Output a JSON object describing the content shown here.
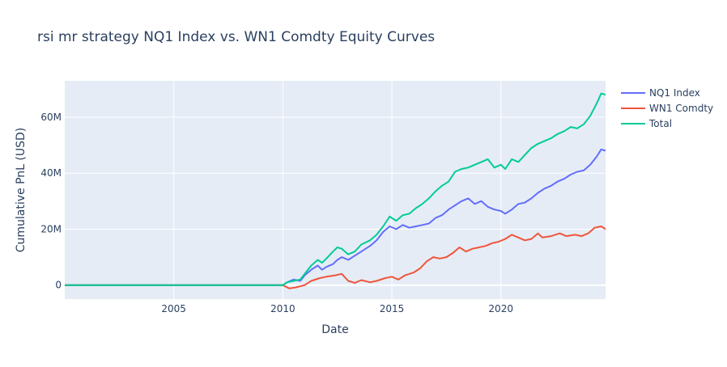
{
  "chart_data": {
    "type": "line",
    "title": "rsi mr strategy NQ1 Index vs. WN1 Comdty Equity Curves",
    "xlabel": "Date",
    "ylabel": "Cumulative PnL (USD)",
    "xlim": [
      2000.0,
      2024.8
    ],
    "ylim": [
      -5000000,
      73000000
    ],
    "x_ticks": [
      {
        "value": 2005,
        "label": "2005"
      },
      {
        "value": 2010,
        "label": "2010"
      },
      {
        "value": 2015,
        "label": "2015"
      },
      {
        "value": 2020,
        "label": "2020"
      }
    ],
    "y_ticks": [
      {
        "value": 0,
        "label": "0"
      },
      {
        "value": 20000000,
        "label": "20M"
      },
      {
        "value": 40000000,
        "label": "40M"
      },
      {
        "value": 60000000,
        "label": "60M"
      }
    ],
    "grid": true,
    "legend_position": "top-right",
    "plot_background": "#E5ECF6",
    "series": [
      {
        "name": "NQ1 Index",
        "color": "#636EFA",
        "points": [
          [
            2000.0,
            0
          ],
          [
            2010.0,
            0
          ],
          [
            2010.2,
            1000000
          ],
          [
            2010.5,
            2000000
          ],
          [
            2010.8,
            1500000
          ],
          [
            2011.0,
            3500000
          ],
          [
            2011.3,
            5500000
          ],
          [
            2011.6,
            7000000
          ],
          [
            2011.8,
            5500000
          ],
          [
            2012.0,
            6500000
          ],
          [
            2012.3,
            7500000
          ],
          [
            2012.5,
            9000000
          ],
          [
            2012.7,
            10000000
          ],
          [
            2013.0,
            9000000
          ],
          [
            2013.3,
            10500000
          ],
          [
            2013.6,
            12000000
          ],
          [
            2014.0,
            14000000
          ],
          [
            2014.3,
            16000000
          ],
          [
            2014.6,
            19000000
          ],
          [
            2014.9,
            21000000
          ],
          [
            2015.2,
            20000000
          ],
          [
            2015.5,
            21500000
          ],
          [
            2015.8,
            20500000
          ],
          [
            2016.1,
            21000000
          ],
          [
            2016.4,
            21500000
          ],
          [
            2016.7,
            22000000
          ],
          [
            2017.0,
            24000000
          ],
          [
            2017.3,
            25000000
          ],
          [
            2017.6,
            27000000
          ],
          [
            2017.9,
            28500000
          ],
          [
            2018.2,
            30000000
          ],
          [
            2018.5,
            31000000
          ],
          [
            2018.8,
            29000000
          ],
          [
            2019.1,
            30000000
          ],
          [
            2019.4,
            28000000
          ],
          [
            2019.7,
            27000000
          ],
          [
            2020.0,
            26500000
          ],
          [
            2020.2,
            25500000
          ],
          [
            2020.5,
            27000000
          ],
          [
            2020.8,
            29000000
          ],
          [
            2021.1,
            29500000
          ],
          [
            2021.4,
            31000000
          ],
          [
            2021.7,
            33000000
          ],
          [
            2022.0,
            34500000
          ],
          [
            2022.3,
            35500000
          ],
          [
            2022.6,
            37000000
          ],
          [
            2022.9,
            38000000
          ],
          [
            2023.2,
            39500000
          ],
          [
            2023.5,
            40500000
          ],
          [
            2023.8,
            41000000
          ],
          [
            2024.1,
            43000000
          ],
          [
            2024.4,
            46000000
          ],
          [
            2024.6,
            48500000
          ],
          [
            2024.8,
            48000000
          ]
        ]
      },
      {
        "name": "WN1 Comdty",
        "color": "#EF553B",
        "points": [
          [
            2000.0,
            0
          ],
          [
            2010.0,
            0
          ],
          [
            2010.3,
            -1200000
          ],
          [
            2010.6,
            -800000
          ],
          [
            2011.0,
            0
          ],
          [
            2011.3,
            1500000
          ],
          [
            2011.7,
            2500000
          ],
          [
            2012.0,
            3000000
          ],
          [
            2012.4,
            3500000
          ],
          [
            2012.7,
            4000000
          ],
          [
            2013.0,
            1500000
          ],
          [
            2013.3,
            800000
          ],
          [
            2013.6,
            1800000
          ],
          [
            2014.0,
            1000000
          ],
          [
            2014.3,
            1500000
          ],
          [
            2014.7,
            2500000
          ],
          [
            2015.0,
            3000000
          ],
          [
            2015.3,
            2000000
          ],
          [
            2015.6,
            3500000
          ],
          [
            2016.0,
            4500000
          ],
          [
            2016.3,
            6000000
          ],
          [
            2016.6,
            8500000
          ],
          [
            2016.9,
            10000000
          ],
          [
            2017.2,
            9500000
          ],
          [
            2017.5,
            10000000
          ],
          [
            2017.8,
            11500000
          ],
          [
            2018.1,
            13500000
          ],
          [
            2018.4,
            12000000
          ],
          [
            2018.7,
            13000000
          ],
          [
            2019.0,
            13500000
          ],
          [
            2019.3,
            14000000
          ],
          [
            2019.6,
            15000000
          ],
          [
            2019.9,
            15500000
          ],
          [
            2020.2,
            16500000
          ],
          [
            2020.5,
            18000000
          ],
          [
            2020.8,
            17000000
          ],
          [
            2021.1,
            16000000
          ],
          [
            2021.4,
            16500000
          ],
          [
            2021.7,
            18500000
          ],
          [
            2021.9,
            17000000
          ],
          [
            2022.3,
            17500000
          ],
          [
            2022.7,
            18500000
          ],
          [
            2023.0,
            17500000
          ],
          [
            2023.4,
            18000000
          ],
          [
            2023.7,
            17500000
          ],
          [
            2024.0,
            18500000
          ],
          [
            2024.3,
            20500000
          ],
          [
            2024.6,
            21000000
          ],
          [
            2024.8,
            20000000
          ]
        ]
      },
      {
        "name": "Total",
        "color": "#00CC96",
        "points": [
          [
            2000.0,
            0
          ],
          [
            2010.0,
            0
          ],
          [
            2010.2,
            1000000
          ],
          [
            2010.5,
            1500000
          ],
          [
            2010.8,
            2000000
          ],
          [
            2011.0,
            4000000
          ],
          [
            2011.3,
            7000000
          ],
          [
            2011.6,
            9000000
          ],
          [
            2011.8,
            8000000
          ],
          [
            2012.0,
            9500000
          ],
          [
            2012.3,
            12000000
          ],
          [
            2012.5,
            13500000
          ],
          [
            2012.7,
            13000000
          ],
          [
            2013.0,
            11000000
          ],
          [
            2013.3,
            12000000
          ],
          [
            2013.6,
            14500000
          ],
          [
            2014.0,
            16000000
          ],
          [
            2014.3,
            18000000
          ],
          [
            2014.6,
            21000000
          ],
          [
            2014.9,
            24500000
          ],
          [
            2015.2,
            23000000
          ],
          [
            2015.5,
            25000000
          ],
          [
            2015.8,
            25500000
          ],
          [
            2016.1,
            27500000
          ],
          [
            2016.4,
            29000000
          ],
          [
            2016.7,
            31000000
          ],
          [
            2017.0,
            33500000
          ],
          [
            2017.3,
            35500000
          ],
          [
            2017.6,
            37000000
          ],
          [
            2017.9,
            40500000
          ],
          [
            2018.2,
            41500000
          ],
          [
            2018.5,
            42000000
          ],
          [
            2018.8,
            43000000
          ],
          [
            2019.1,
            44000000
          ],
          [
            2019.4,
            45000000
          ],
          [
            2019.7,
            42000000
          ],
          [
            2020.0,
            43000000
          ],
          [
            2020.2,
            41500000
          ],
          [
            2020.5,
            45000000
          ],
          [
            2020.8,
            44000000
          ],
          [
            2021.1,
            46500000
          ],
          [
            2021.4,
            49000000
          ],
          [
            2021.7,
            50500000
          ],
          [
            2022.0,
            51500000
          ],
          [
            2022.3,
            52500000
          ],
          [
            2022.6,
            54000000
          ],
          [
            2022.9,
            55000000
          ],
          [
            2023.2,
            56500000
          ],
          [
            2023.5,
            56000000
          ],
          [
            2023.8,
            57500000
          ],
          [
            2024.1,
            60500000
          ],
          [
            2024.4,
            65000000
          ],
          [
            2024.6,
            68500000
          ],
          [
            2024.8,
            68000000
          ]
        ]
      }
    ]
  }
}
